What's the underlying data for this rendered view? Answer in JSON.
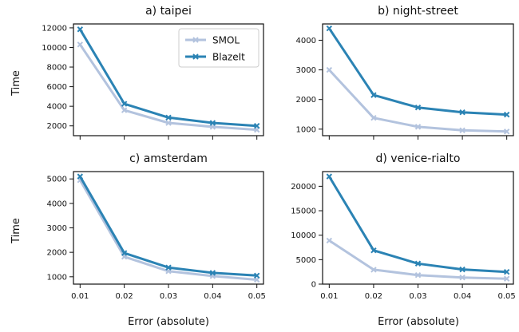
{
  "figure": {
    "y_label": "Time",
    "x_label": "Error (absolute)"
  },
  "colors": {
    "smol": "#b3c3de",
    "blazeit": "#2b83b4"
  },
  "legend": {
    "position": "top-right",
    "items": [
      "SMOL",
      "BlazeIt"
    ]
  },
  "chart_data": [
    {
      "type": "line",
      "title": "a) taipei",
      "x": [
        0.01,
        0.02,
        0.03,
        0.04,
        0.05
      ],
      "xlim": [
        0.0085,
        0.0515
      ],
      "ylim": [
        1000,
        12400
      ],
      "yticks": [
        2000,
        4000,
        6000,
        8000,
        10000,
        12000
      ],
      "ytick_labels": [
        "2000",
        "4000",
        "6000",
        "8000",
        "10000",
        "12000"
      ],
      "xticks_labeled": false,
      "series": [
        {
          "name": "SMOL",
          "values": [
            10300,
            3600,
            2300,
            1900,
            1600
          ]
        },
        {
          "name": "BlazeIt",
          "values": [
            11850,
            4250,
            2850,
            2300,
            2000
          ]
        }
      ]
    },
    {
      "type": "line",
      "title": "b) night-street",
      "x": [
        0.01,
        0.02,
        0.03,
        0.04,
        0.05
      ],
      "xlim": [
        0.0085,
        0.0515
      ],
      "ylim": [
        780,
        4550
      ],
      "yticks": [
        1000,
        2000,
        3000,
        4000
      ],
      "ytick_labels": [
        "1000",
        "2000",
        "3000",
        "4000"
      ],
      "xticks_labeled": false,
      "series": [
        {
          "name": "SMOL",
          "values": [
            3000,
            1380,
            1080,
            960,
            920
          ]
        },
        {
          "name": "BlazeIt",
          "values": [
            4400,
            2150,
            1730,
            1570,
            1490
          ]
        }
      ]
    },
    {
      "type": "line",
      "title": "c) amsterdam",
      "x": [
        0.01,
        0.02,
        0.03,
        0.04,
        0.05
      ],
      "xlim": [
        0.0085,
        0.0515
      ],
      "ylim": [
        700,
        5300
      ],
      "yticks": [
        1000,
        2000,
        3000,
        4000,
        5000
      ],
      "ytick_labels": [
        "1000",
        "2000",
        "3000",
        "4000",
        "5000"
      ],
      "xticks_labeled": true,
      "xtick_labels": [
        "0.01",
        "0.02",
        "0.03",
        "0.04",
        "0.05"
      ],
      "series": [
        {
          "name": "SMOL",
          "values": [
            4950,
            1820,
            1230,
            1030,
            880
          ]
        },
        {
          "name": "BlazeIt",
          "values": [
            5100,
            1970,
            1380,
            1160,
            1050
          ]
        }
      ]
    },
    {
      "type": "line",
      "title": "d) venice-rialto",
      "x": [
        0.01,
        0.02,
        0.03,
        0.04,
        0.05
      ],
      "xlim": [
        0.0085,
        0.0515
      ],
      "ylim": [
        0,
        23000
      ],
      "yticks": [
        0,
        5000,
        10000,
        15000,
        20000
      ],
      "ytick_labels": [
        "0",
        "5000",
        "10000",
        "15000",
        "20000"
      ],
      "xticks_labeled": true,
      "xtick_labels": [
        "0.01",
        "0.02",
        "0.03",
        "0.04",
        "0.05"
      ],
      "series": [
        {
          "name": "SMOL",
          "values": [
            8900,
            2950,
            1850,
            1350,
            1100
          ]
        },
        {
          "name": "BlazeIt",
          "values": [
            22000,
            6900,
            4200,
            3000,
            2500
          ]
        }
      ]
    }
  ]
}
